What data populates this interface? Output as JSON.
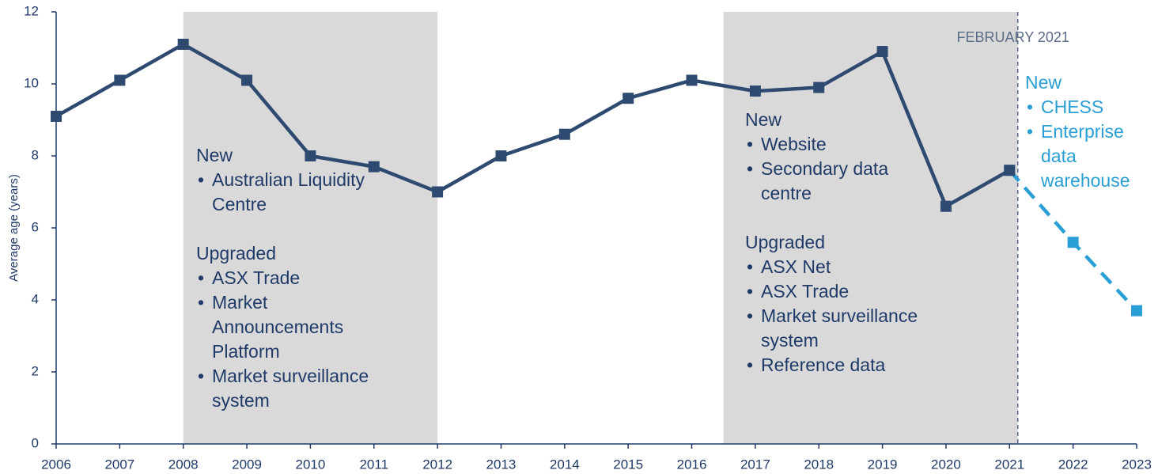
{
  "chart_data": {
    "type": "line",
    "y_label": "Average age (years)",
    "xlim": [
      2006,
      2023
    ],
    "xticks": [
      2006,
      2007,
      2008,
      2009,
      2010,
      2011,
      2012,
      2013,
      2014,
      2015,
      2016,
      2017,
      2018,
      2019,
      2020,
      2021,
      2022,
      2023
    ],
    "ylim": [
      0,
      12
    ],
    "yticks": [
      0,
      2,
      4,
      6,
      8,
      10,
      12
    ],
    "shaded": [
      [
        2008,
        2012
      ],
      [
        2016.5,
        2021.13
      ]
    ],
    "shade_color": "#d9d9d9",
    "vline": {
      "x": 2021.13,
      "label": "FEBRUARY 2021",
      "color": "#5a6b85"
    },
    "series": [
      {
        "color": "#2f4a70",
        "dashed": false,
        "x": [
          2006,
          2007,
          2008,
          2009,
          2010,
          2011,
          2012,
          2013,
          2014,
          2015,
          2016,
          2017,
          2018,
          2019,
          2020,
          2021
        ],
        "values": [
          9.1,
          10.1,
          11.1,
          10.1,
          8.0,
          7.7,
          7.0,
          8.0,
          8.6,
          9.6,
          10.1,
          9.8,
          9.9,
          10.9,
          6.6,
          7.6
        ]
      },
      {
        "color": "#2a9fd6",
        "dashed": true,
        "x": [
          2021,
          2022,
          2023
        ],
        "values": [
          7.6,
          5.6,
          3.7
        ]
      }
    ],
    "annotations": [
      {
        "color": "#1f3a68",
        "sections": [
          {
            "heading": "New",
            "items": [
              "Australian Liquidity Centre"
            ]
          },
          {
            "heading": "Upgraded",
            "items": [
              "ASX Trade",
              "Market Announcements Platform",
              "Market surveillance system"
            ]
          }
        ]
      },
      {
        "color": "#1f3a68",
        "sections": [
          {
            "heading": "New",
            "items": [
              "Website",
              "Secondary data centre"
            ]
          },
          {
            "heading": "Upgraded",
            "items": [
              "ASX Net",
              "ASX Trade",
              "Market surveillance system",
              "Reference data"
            ]
          }
        ]
      },
      {
        "color": "#2a9fd6",
        "sections": [
          {
            "heading": "New",
            "items": [
              "CHESS",
              "Enterprise data warehouse"
            ]
          }
        ]
      }
    ]
  }
}
